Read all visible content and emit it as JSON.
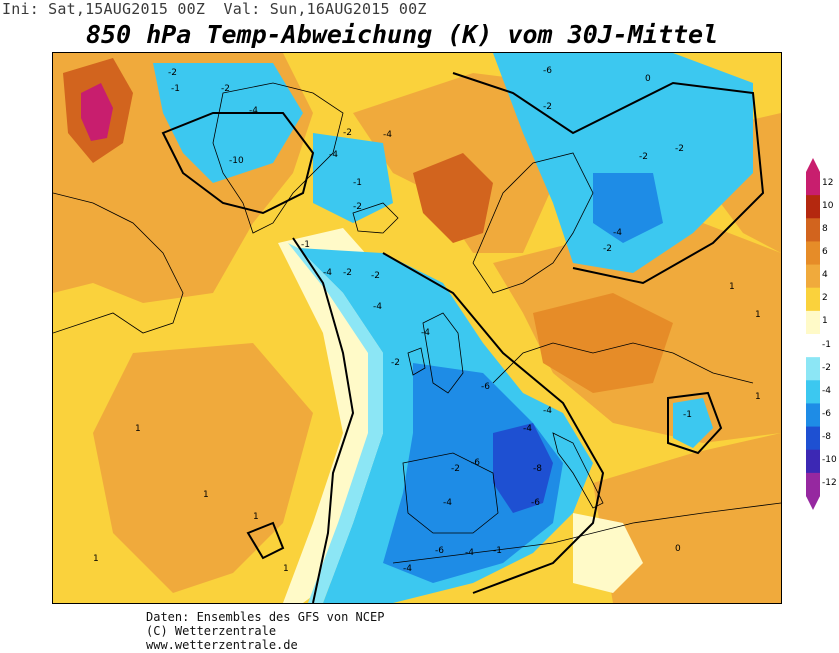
{
  "header": {
    "init_text": "Ini: Sat,15AUG2015 00Z",
    "valid_text": "Val: Sun,16AUG2015 00Z"
  },
  "title": "850 hPa Temp-Abweichung (K) vom 30J-Mittel",
  "footer": {
    "line1": "Daten: Ensembles des GFS von NCEP",
    "line2": "(C) Wetterzentrale",
    "line3": "www.wetterzentrale.de"
  },
  "colorbar": {
    "levels": [
      "12",
      "10",
      "8",
      "6",
      "4",
      "2",
      "1",
      "-1",
      "-2",
      "-4",
      "-6",
      "-8",
      "-10",
      "-12"
    ],
    "colors": [
      "#c81e6e",
      "#b4280f",
      "#d2641e",
      "#e68c28",
      "#f0aa3c",
      "#fad23c",
      "#fffac8",
      "#ffffff",
      "#8ce6f5",
      "#3cc8f0",
      "#1e8ce6",
      "#1e50d2",
      "#3c28b4",
      "#9628a0"
    ],
    "arrow_color_top": "#c81e6e",
    "arrow_color_bottom": "#9628a0"
  },
  "map_labels": {
    "contour_values": [
      "-2",
      "-1",
      "-2",
      "-4",
      "-10",
      "-6",
      "-2",
      "-2",
      "-4",
      "-1",
      "-2",
      "-4",
      "-2",
      "-2",
      "-4",
      "-2",
      "-4",
      "-2",
      "-4",
      "-6",
      "-4",
      "-4",
      "-2",
      "-6",
      "-8",
      "-4",
      "-6",
      "-6",
      "-4",
      "-4",
      "-1",
      "-2",
      "-1",
      "-4",
      "-2",
      "-1",
      "1",
      "1",
      "1",
      "1",
      "1",
      "1",
      "1",
      "1",
      "0",
      "0"
    ]
  },
  "colors": {
    "orange_anomaly": "#f0aa3c",
    "yellow_anomaly": "#fad23c",
    "light_yellow": "#fffac8",
    "cyan_anomaly": "#3cc8f0",
    "light_cyan": "#8ce6f5",
    "blue_anomaly": "#1e8ce6",
    "deep_blue": "#1e50d2",
    "dark_orange": "#d2641e",
    "magenta": "#c81e6e"
  }
}
